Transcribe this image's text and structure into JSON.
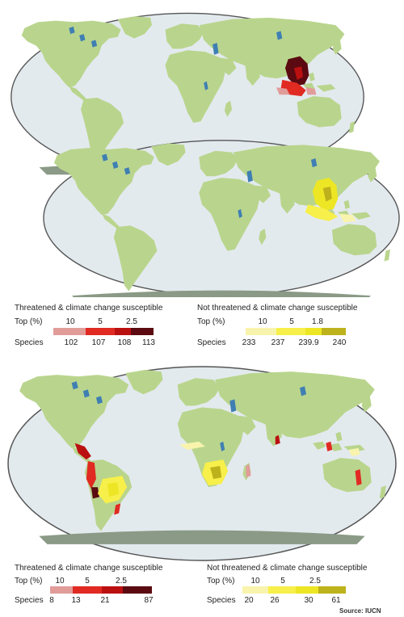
{
  "colors": {
    "ocean": "#e3eaee",
    "land": "#b9d58d",
    "lake": "#3f7fb3",
    "antarctica": "#8a9a86",
    "map_border": "#555555",
    "red_scale": [
      "#e19c9a",
      "#e02a22",
      "#bb1010",
      "#5a0a10"
    ],
    "yellow_scale": [
      "#f8f4ad",
      "#f7ef4a",
      "#ede624",
      "#bdb21c"
    ]
  },
  "legends": {
    "top_threatened": {
      "title": "Threatened & climate change susceptible",
      "top_label": "Top (%)",
      "top_ticks": [
        "10",
        "5",
        "2.5"
      ],
      "species_label": "Species",
      "species_ticks": [
        "102",
        "107",
        "108",
        "113"
      ]
    },
    "top_not_threatened": {
      "title": "Not threatened & climate change susceptible",
      "top_label": "Top (%)",
      "top_ticks": [
        "10",
        "5",
        "1.8"
      ],
      "species_label": "Species",
      "species_ticks": [
        "233",
        "237",
        "239.9",
        "240"
      ]
    },
    "bottom_threatened": {
      "title": "Threatened & climate change susceptible",
      "top_label": "Top (%)",
      "top_ticks": [
        "10",
        "5",
        "2.5"
      ],
      "species_label": "Species",
      "species_ticks": [
        "8",
        "13",
        "21",
        "87"
      ]
    },
    "bottom_not_threatened": {
      "title": "Not threatened & climate change susceptible",
      "top_label": "Top (%)",
      "top_ticks": [
        "10",
        "5",
        "2.5"
      ],
      "species_label": "Species",
      "species_ticks": [
        "20",
        "26",
        "30",
        "61"
      ]
    }
  },
  "source": "Source: IUCN"
}
